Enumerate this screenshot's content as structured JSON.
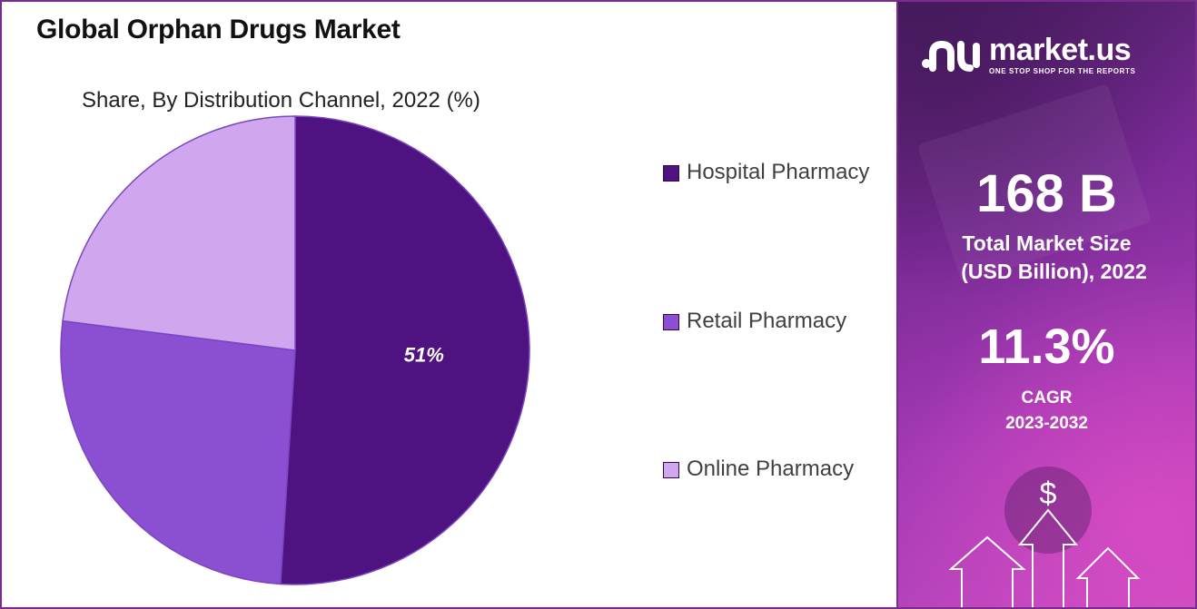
{
  "chart_data": {
    "type": "pie",
    "title": "Global Orphan Drugs Market",
    "subtitle": "Share, By Distribution Channel, 2022 (%)",
    "categories": [
      "Hospital Pharmacy",
      "Retail Pharmacy",
      "Online Pharmacy"
    ],
    "values": [
      51,
      26,
      23
    ],
    "colors": [
      "#4e1381",
      "#8b4fd2",
      "#d0a6ee"
    ],
    "data_labels": [
      "51%",
      "",
      ""
    ],
    "legend_position": "right"
  },
  "side_panel": {
    "brand_name": "market.us",
    "brand_tagline": "ONE STOP SHOP FOR THE REPORTS",
    "market_size_value": "168 B",
    "market_size_label_line1": "Total Market Size",
    "market_size_label_line2": "(USD Billion), 2022",
    "cagr_value": "11.3%",
    "cagr_label_line1": "CAGR",
    "cagr_label_line2": "2023-2032",
    "currency_symbol": "$",
    "icons": [
      "market-us-logo-icon",
      "dollar-icon",
      "up-arrow-icon"
    ]
  }
}
